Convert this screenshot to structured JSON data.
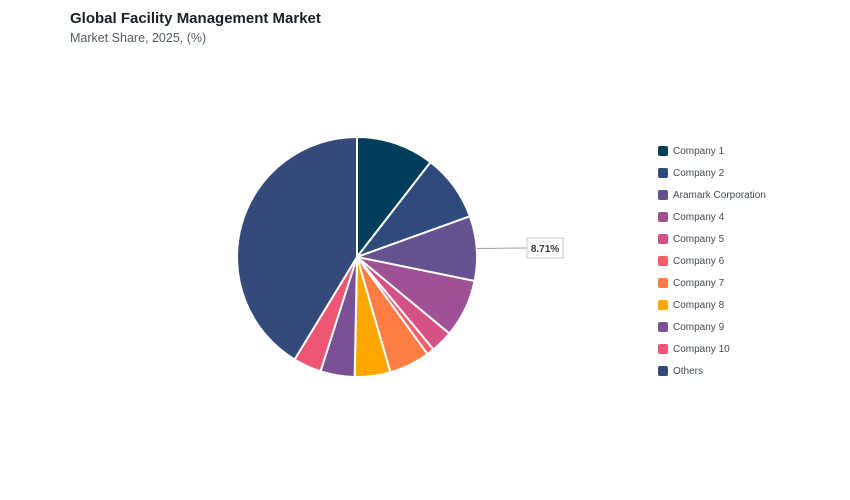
{
  "header": {
    "title": "Global Facility Management Market",
    "subtitle": "Market Share, 2025, (%)"
  },
  "chart_data": {
    "type": "pie",
    "start_angle_deg": 0,
    "direction": "clockwise",
    "legend_position": "right",
    "slices": [
      {
        "label": "Company 1",
        "value": 10.5,
        "color": "#003f5c"
      },
      {
        "label": "Company 2",
        "value": 9.0,
        "color": "#2f4b7c"
      },
      {
        "label": "Aramark Corporation",
        "value": 8.71,
        "color": "#665191",
        "data_label": "8.71%"
      },
      {
        "label": "Company 4",
        "value": 7.8,
        "color": "#a05195"
      },
      {
        "label": "Company 5",
        "value": 3.0,
        "color": "#d45087"
      },
      {
        "label": "Company 6",
        "value": 1.0,
        "color": "#f95d6a"
      },
      {
        "label": "Company 7",
        "value": 5.5,
        "color": "#ff7c43"
      },
      {
        "label": "Company 8",
        "value": 4.8,
        "color": "#ffa600"
      },
      {
        "label": "Company 9",
        "value": 4.6,
        "color": "#7a5195"
      },
      {
        "label": "Company 10",
        "value": 3.8,
        "color": "#ef5675"
      },
      {
        "label": "Others",
        "value": 41.29,
        "color": "#344a7b"
      }
    ]
  }
}
